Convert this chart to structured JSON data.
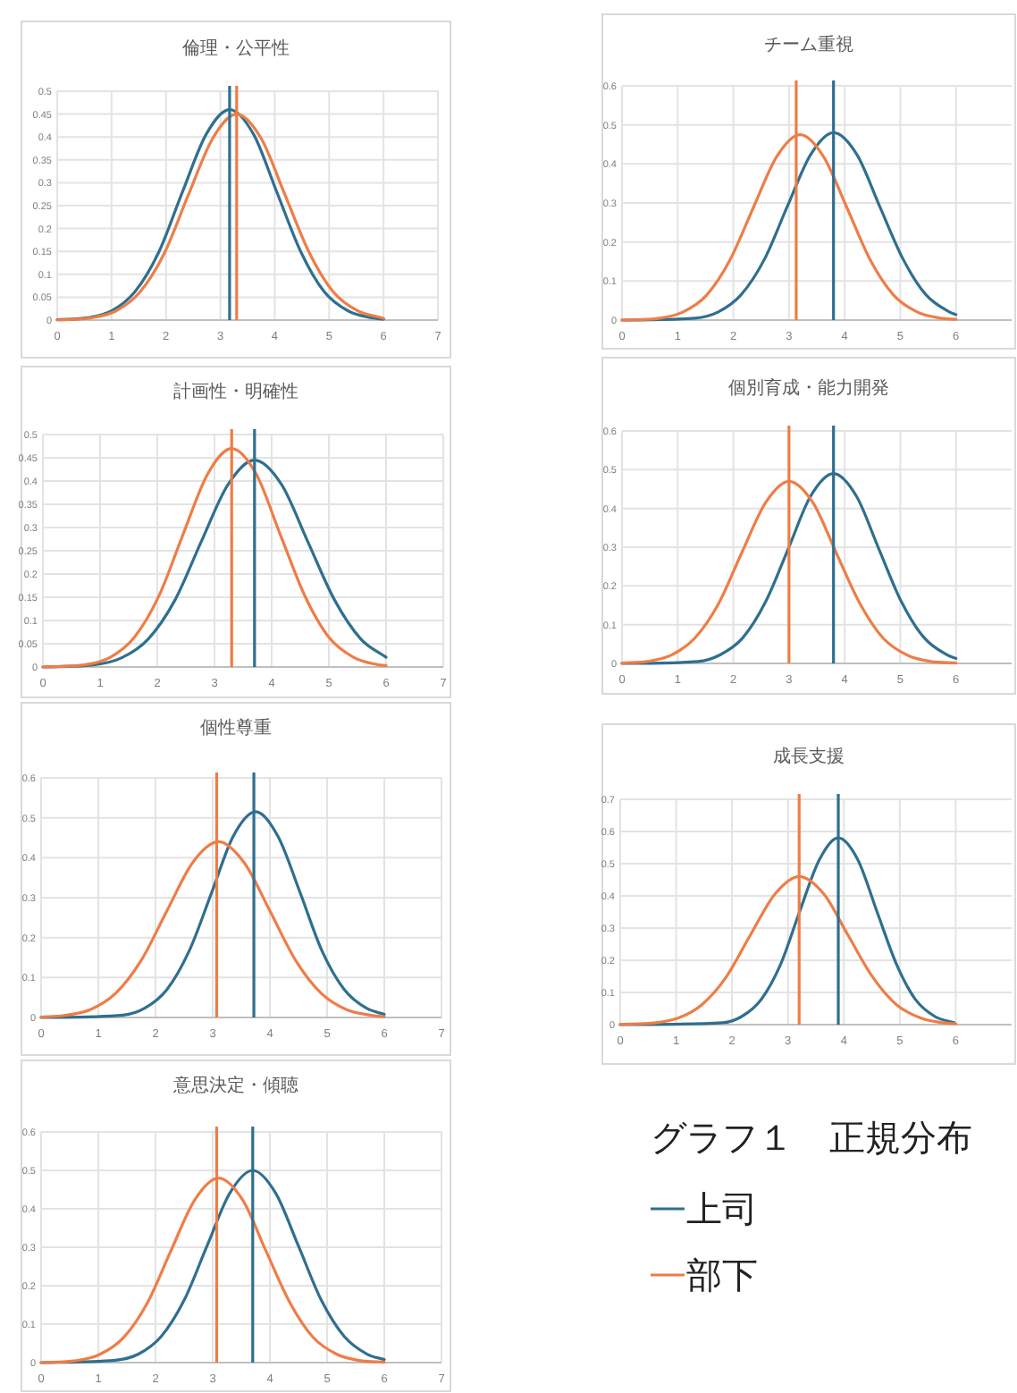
{
  "chart_data": [
    {
      "type": "line",
      "title": "倫理・公平性",
      "xlim": [
        0,
        7
      ],
      "xticks": [
        0,
        1,
        2,
        3,
        4,
        5,
        6,
        7
      ],
      "ylim": [
        0,
        0.5
      ],
      "yticks": [
        0,
        0.05,
        0.1,
        0.15,
        0.2,
        0.25,
        0.3,
        0.35,
        0.4,
        0.45,
        0.5
      ],
      "grid": true,
      "series": [
        {
          "color": "#2f6f8f",
          "x": [
            0,
            0.56,
            1.0,
            1.43,
            1.87,
            2.3,
            2.74,
            3.17,
            3.61,
            4.04,
            4.48,
            4.91,
            5.35,
            5.78,
            6
          ],
          "values": [
            0.001,
            0.005,
            0.02,
            0.062,
            0.149,
            0.279,
            0.406,
            0.46,
            0.406,
            0.279,
            0.149,
            0.062,
            0.02,
            0.005,
            0.002
          ]
        },
        {
          "color": "#ee7d46",
          "x": [
            0,
            0.63,
            1.08,
            1.52,
            1.97,
            2.41,
            2.86,
            3.3,
            3.75,
            4.19,
            4.64,
            5.08,
            5.53,
            5.97,
            6
          ],
          "values": [
            0.0,
            0.005,
            0.02,
            0.061,
            0.146,
            0.273,
            0.397,
            0.45,
            0.397,
            0.273,
            0.146,
            0.061,
            0.02,
            0.005,
            0.004
          ]
        }
      ],
      "ref_lines": [
        {
          "axis": "x",
          "value": 3.17,
          "color": "#2f6f8f"
        },
        {
          "axis": "x",
          "value": 3.3,
          "color": "#ee7d46"
        }
      ]
    },
    {
      "type": "line",
      "title": "チーム重視",
      "xlim": [
        0,
        7
      ],
      "xticks": [
        0,
        1,
        2,
        3,
        4,
        5,
        6
      ],
      "ylim": [
        0,
        0.6
      ],
      "yticks": [
        0,
        0.1,
        0.2,
        0.3,
        0.4,
        0.5,
        0.6
      ],
      "grid": true,
      "series": [
        {
          "color": "#2f6f8f",
          "x": [
            0,
            1.31,
            1.73,
            2.14,
            2.56,
            2.97,
            3.39,
            3.8,
            4.22,
            4.63,
            5.05,
            5.46,
            5.88,
            6
          ],
          "values": [
            0.0,
            0.005,
            0.021,
            0.065,
            0.156,
            0.291,
            0.424,
            0.48,
            0.424,
            0.291,
            0.156,
            0.065,
            0.021,
            0.014
          ]
        },
        {
          "color": "#ee7d46",
          "x": [
            0,
            0.68,
            1.1,
            1.52,
            1.94,
            2.36,
            2.78,
            3.2,
            3.62,
            4.04,
            4.46,
            4.88,
            5.3,
            5.72,
            6
          ],
          "values": [
            0.0,
            0.005,
            0.021,
            0.064,
            0.154,
            0.288,
            0.419,
            0.475,
            0.419,
            0.288,
            0.154,
            0.064,
            0.021,
            0.005,
            0.002
          ]
        }
      ],
      "ref_lines": [
        {
          "axis": "x",
          "value": 3.8,
          "color": "#2f6f8f"
        },
        {
          "axis": "x",
          "value": 3.13,
          "color": "#ee7d46"
        }
      ]
    },
    {
      "type": "line",
      "title": "計画性・明確性",
      "xlim": [
        0,
        7
      ],
      "xticks": [
        0,
        1,
        2,
        3,
        4,
        5,
        6,
        7
      ],
      "ylim": [
        0,
        0.5
      ],
      "yticks": [
        0,
        0.05,
        0.1,
        0.15,
        0.2,
        0.25,
        0.3,
        0.35,
        0.4,
        0.45,
        0.5
      ],
      "grid": true,
      "series": [
        {
          "color": "#2f6f8f",
          "x": [
            0,
            0.91,
            1.38,
            1.84,
            2.31,
            2.77,
            3.24,
            3.7,
            4.17,
            4.63,
            5.1,
            5.56,
            6
          ],
          "values": [
            0.0,
            0.005,
            0.02,
            0.06,
            0.144,
            0.27,
            0.393,
            0.445,
            0.393,
            0.27,
            0.144,
            0.06,
            0.021
          ]
        },
        {
          "color": "#ee7d46",
          "x": [
            0,
            0.75,
            1.18,
            1.6,
            2.03,
            2.45,
            2.88,
            3.3,
            3.73,
            4.15,
            4.58,
            5.0,
            5.43,
            5.85,
            6
          ],
          "values": [
            0.0,
            0.005,
            0.021,
            0.064,
            0.153,
            0.285,
            0.415,
            0.47,
            0.415,
            0.285,
            0.153,
            0.064,
            0.021,
            0.005,
            0.003
          ]
        }
      ],
      "ref_lines": [
        {
          "axis": "x",
          "value": 3.7,
          "color": "#2f6f8f"
        },
        {
          "axis": "x",
          "value": 3.3,
          "color": "#ee7d46"
        }
      ]
    },
    {
      "type": "line",
      "title": "個別育成・能力開発",
      "xlim": [
        0,
        7
      ],
      "xticks": [
        0,
        1,
        2,
        3,
        4,
        5,
        6
      ],
      "ylim": [
        0,
        0.6
      ],
      "yticks": [
        0,
        0.1,
        0.2,
        0.3,
        0.4,
        0.5,
        0.6
      ],
      "grid": true,
      "series": [
        {
          "color": "#2f6f8f",
          "x": [
            0,
            1.36,
            1.76,
            2.17,
            2.58,
            2.99,
            3.39,
            3.8,
            4.21,
            4.61,
            5.02,
            5.43,
            5.84,
            6
          ],
          "values": [
            0.0,
            0.005,
            0.022,
            0.066,
            0.159,
            0.297,
            0.432,
            0.49,
            0.432,
            0.297,
            0.159,
            0.066,
            0.022,
            0.013
          ]
        },
        {
          "color": "#ee7d46",
          "x": [
            0,
            0.45,
            0.88,
            1.3,
            1.73,
            2.15,
            2.58,
            3.0,
            3.43,
            3.85,
            4.28,
            4.7,
            5.13,
            5.55,
            6
          ],
          "values": [
            0.001,
            0.005,
            0.021,
            0.064,
            0.153,
            0.285,
            0.415,
            0.47,
            0.415,
            0.285,
            0.153,
            0.064,
            0.021,
            0.005,
            0.001
          ]
        }
      ],
      "ref_lines": [
        {
          "axis": "x",
          "value": 3.8,
          "color": "#2f6f8f"
        },
        {
          "axis": "x",
          "value": 3.0,
          "color": "#ee7d46"
        }
      ]
    },
    {
      "type": "line",
      "title": "個性尊重",
      "xlim": [
        0,
        7
      ],
      "xticks": [
        0,
        1,
        2,
        3,
        4,
        5,
        6,
        7
      ],
      "ylim": [
        0,
        0.6
      ],
      "yticks": [
        0,
        0.1,
        0.2,
        0.3,
        0.4,
        0.5,
        0.6
      ],
      "grid": true,
      "series": [
        {
          "color": "#2f6f8f",
          "x": [
            0,
            1.43,
            1.81,
            2.2,
            2.59,
            2.98,
            3.36,
            3.75,
            4.14,
            4.53,
            4.91,
            5.3,
            5.69,
            6
          ],
          "values": [
            0.0,
            0.006,
            0.023,
            0.07,
            0.167,
            0.312,
            0.454,
            0.515,
            0.454,
            0.312,
            0.167,
            0.07,
            0.023,
            0.008
          ]
        },
        {
          "color": "#ee7d46",
          "x": [
            0,
            0.4,
            0.85,
            1.3,
            1.75,
            2.2,
            2.65,
            3.1,
            3.55,
            4.0,
            4.45,
            4.9,
            5.35,
            5.8,
            6
          ],
          "values": [
            0.001,
            0.005,
            0.019,
            0.06,
            0.143,
            0.267,
            0.388,
            0.44,
            0.388,
            0.267,
            0.143,
            0.06,
            0.019,
            0.005,
            0.002
          ]
        }
      ],
      "ref_lines": [
        {
          "axis": "x",
          "value": 3.72,
          "color": "#2f6f8f"
        },
        {
          "axis": "x",
          "value": 3.07,
          "color": "#ee7d46"
        }
      ]
    },
    {
      "type": "line",
      "title": "成長支援",
      "xlim": [
        0,
        7
      ],
      "xticks": [
        0,
        1,
        2,
        3,
        4,
        5,
        6
      ],
      "ylim": [
        0,
        0.7
      ],
      "yticks": [
        0,
        0.1,
        0.2,
        0.3,
        0.4,
        0.5,
        0.6,
        0.7
      ],
      "grid": true,
      "legend": "bottom",
      "annotations": [
        "グラフ１　正規分布"
      ],
      "series": [
        {
          "name": "上司",
          "color": "#2f6f8f",
          "x": [
            0,
            1.83,
            2.17,
            2.52,
            2.87,
            3.21,
            3.56,
            3.9,
            4.25,
            4.59,
            4.94,
            5.28,
            5.63,
            5.97
          ],
          "values": [
            0.0,
            0.006,
            0.025,
            0.078,
            0.188,
            0.352,
            0.512,
            0.58,
            0.512,
            0.352,
            0.188,
            0.078,
            0.025,
            0.006
          ]
        },
        {
          "name": "部下",
          "color": "#ee7d46",
          "x": [
            0,
            0.59,
            1.03,
            1.46,
            1.9,
            2.33,
            2.77,
            3.2,
            3.64,
            4.07,
            4.51,
            4.94,
            5.38,
            5.81,
            6
          ],
          "values": [
            0.001,
            0.005,
            0.02,
            0.062,
            0.149,
            0.279,
            0.406,
            0.46,
            0.406,
            0.279,
            0.149,
            0.062,
            0.02,
            0.005,
            0.003
          ]
        }
      ],
      "ref_lines": [
        {
          "axis": "x",
          "value": 3.9,
          "color": "#2f6f8f"
        },
        {
          "axis": "x",
          "value": 3.2,
          "color": "#ee7d46"
        }
      ]
    },
    {
      "type": "line",
      "title": "意思決定・傾聴",
      "xlim": [
        0,
        7
      ],
      "xticks": [
        0,
        1,
        2,
        3,
        4,
        5,
        6,
        7
      ],
      "ylim": [
        0,
        0.6
      ],
      "yticks": [
        0,
        0.1,
        0.2,
        0.3,
        0.4,
        0.5,
        0.6
      ],
      "grid": true,
      "series": [
        {
          "color": "#2f6f8f",
          "x": [
            0,
            1.3,
            1.7,
            2.1,
            2.5,
            2.9,
            3.3,
            3.7,
            4.1,
            4.5,
            4.9,
            5.3,
            5.7,
            6
          ],
          "values": [
            0.0,
            0.006,
            0.022,
            0.068,
            0.162,
            0.303,
            0.441,
            0.5,
            0.441,
            0.303,
            0.162,
            0.068,
            0.022,
            0.008
          ]
        },
        {
          "color": "#ee7d46",
          "x": [
            0,
            0.61,
            1.02,
            1.44,
            1.86,
            2.27,
            2.69,
            3.1,
            3.52,
            3.93,
            4.35,
            4.76,
            5.18,
            5.59,
            6
          ],
          "values": [
            0.0,
            0.005,
            0.021,
            0.065,
            0.156,
            0.291,
            0.424,
            0.48,
            0.424,
            0.291,
            0.156,
            0.065,
            0.021,
            0.005,
            0.001
          ]
        }
      ],
      "ref_lines": [
        {
          "axis": "x",
          "value": 3.7,
          "color": "#2f6f8f"
        },
        {
          "axis": "x",
          "value": 3.07,
          "color": "#ee7d46"
        }
      ]
    }
  ]
}
